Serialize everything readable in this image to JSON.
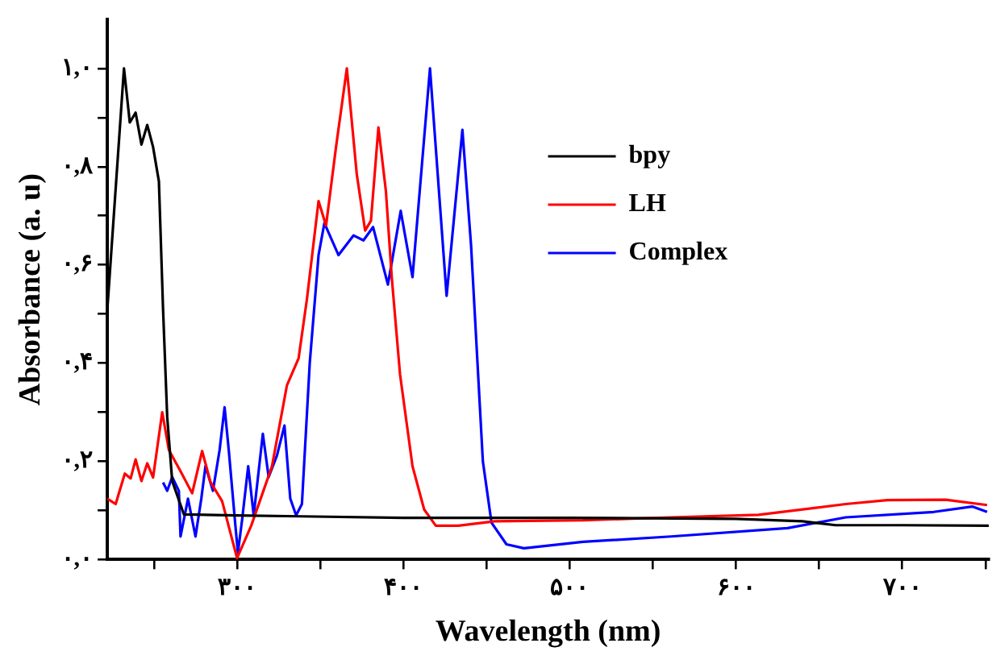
{
  "chart_data": {
    "type": "line",
    "xlabel": "Wavelength (nm)",
    "ylabel": "Absorbance (a. u)",
    "xlim": [
      222,
      752
    ],
    "ylim": [
      0,
      1.1
    ],
    "xticks": [
      {
        "value": 250,
        "label": null
      },
      {
        "value": 300,
        "label": "۳۰۰"
      },
      {
        "value": 350,
        "label": null
      },
      {
        "value": 400,
        "label": "۴۰۰"
      },
      {
        "value": 450,
        "label": null
      },
      {
        "value": 500,
        "label": "۵۰۰"
      },
      {
        "value": 550,
        "label": null
      },
      {
        "value": 600,
        "label": "۶۰۰"
      },
      {
        "value": 650,
        "label": null
      },
      {
        "value": 700,
        "label": "۷۰۰"
      },
      {
        "value": 750,
        "label": null
      }
    ],
    "yticks": [
      {
        "value": 0,
        "label": "۰,۰"
      },
      {
        "value": 0.1,
        "label": null
      },
      {
        "value": 0.2,
        "label": "۰,۲"
      },
      {
        "value": 0.3,
        "label": null
      },
      {
        "value": 0.4,
        "label": "۰,۴"
      },
      {
        "value": 0.5,
        "label": null
      },
      {
        "value": 0.6,
        "label": "۰,۶"
      },
      {
        "value": 0.7,
        "label": null
      },
      {
        "value": 0.8,
        "label": "۰,۸"
      },
      {
        "value": 0.9,
        "label": null
      },
      {
        "value": 1.0,
        "label": "۱,۰"
      }
    ],
    "grid": false,
    "legend": "top right",
    "marker": "none",
    "line_style": "solid",
    "series": [
      {
        "name": "bpy",
        "color": "#000000",
        "x": [
          222,
          232,
          235.5,
          239,
          242.5,
          246,
          249.5,
          253,
          255.5,
          258,
          261,
          268,
          300,
          338,
          400,
          500,
          600,
          640,
          660,
          700,
          752
        ],
        "values": [
          0.51,
          1.0,
          0.89,
          0.91,
          0.845,
          0.885,
          0.84,
          0.77,
          0.51,
          0.29,
          0.16,
          0.092,
          0.09,
          0.088,
          0.085,
          0.085,
          0.083,
          0.078,
          0.07,
          0.07,
          0.069
        ]
      },
      {
        "name": "LH",
        "color": "#ff0000",
        "x": [
          222,
          227,
          232.5,
          236,
          239,
          242.5,
          246,
          249.5,
          255,
          259,
          266,
          273,
          279,
          284,
          291,
          300,
          308.5,
          321,
          330,
          337,
          342,
          349,
          353.5,
          359.5,
          366,
          372,
          377,
          380.5,
          385,
          389.5,
          393,
          398,
          405.5,
          412.5,
          419.5,
          433,
          455,
          508,
          561,
          613.5,
          666,
          691,
          726,
          751
        ],
        "values": [
          0.124,
          0.113,
          0.175,
          0.165,
          0.204,
          0.16,
          0.196,
          0.167,
          0.3,
          0.223,
          0.18,
          0.135,
          0.221,
          0.158,
          0.119,
          0.003,
          0.069,
          0.19,
          0.355,
          0.41,
          0.53,
          0.73,
          0.68,
          0.84,
          1.0,
          0.784,
          0.67,
          0.69,
          0.88,
          0.75,
          0.575,
          0.377,
          0.19,
          0.102,
          0.069,
          0.069,
          0.078,
          0.08,
          0.086,
          0.091,
          0.113,
          0.121,
          0.122,
          0.111
        ]
      },
      {
        "name": "Complex",
        "color": "#0000ff",
        "x": [
          255.5,
          258,
          261,
          265,
          266,
          270.5,
          275,
          278.5,
          281,
          285.5,
          289.5,
          292.5,
          295,
          299,
          300.5,
          303,
          306.7,
          310,
          315.5,
          319,
          324,
          328.5,
          332,
          335.5,
          339,
          343.7,
          349,
          352.5,
          361,
          370,
          376,
          381.8,
          390.7,
          398.4,
          405.5,
          416,
          426,
          435.5,
          440.7,
          447.8,
          453,
          462,
          472.5,
          508,
          561,
          631,
          666,
          719,
          742,
          751
        ],
        "values": [
          0.157,
          0.14,
          0.168,
          0.14,
          0.047,
          0.124,
          0.047,
          0.124,
          0.19,
          0.14,
          0.223,
          0.31,
          0.223,
          0.069,
          0.014,
          0.08,
          0.19,
          0.09,
          0.256,
          0.168,
          0.212,
          0.273,
          0.124,
          0.09,
          0.113,
          0.4,
          0.62,
          0.685,
          0.62,
          0.66,
          0.65,
          0.677,
          0.56,
          0.71,
          0.575,
          1.0,
          0.537,
          0.875,
          0.64,
          0.2,
          0.075,
          0.031,
          0.023,
          0.036,
          0.047,
          0.064,
          0.086,
          0.097,
          0.108,
          0.097
        ]
      }
    ]
  }
}
